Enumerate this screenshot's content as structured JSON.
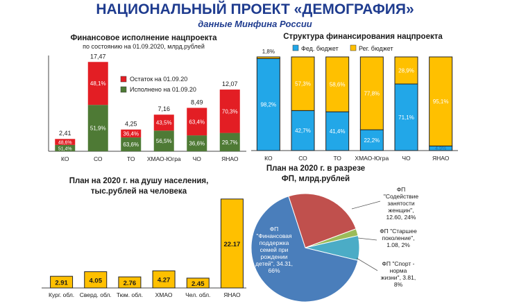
{
  "header": {
    "title": "НАЦИОНАЛЬНЫЙ ПРОЕКТ «ДЕМОГРАФИЯ»",
    "subtitle": "данные Минфина России"
  },
  "colors": {
    "title_blue": "#1f3c8f",
    "red": "#e31e24",
    "green": "#4e7a35",
    "fed_blue": "#22a7e8",
    "reg_yellow": "#ffc000",
    "pie_blue": "#4a7ebb",
    "pie_red": "#c0504d",
    "pie_green": "#9bbb59",
    "pie_teal": "#4bacc6"
  },
  "chart_data": [
    {
      "id": "execution",
      "type": "bar",
      "stacked": true,
      "title": "Финансовое исполнение нацпроекта",
      "subtitle": "по состоянию на 01.09.2020, млрд.рублей",
      "categories": [
        "КО",
        "СО",
        "ТО",
        "ХМАО-Югра",
        "ЧО",
        "ЯНАО"
      ],
      "totals": [
        "2,41",
        "17,47",
        "4,25",
        "7,16",
        "8,49",
        "12,07"
      ],
      "total_values": [
        2.41,
        17.47,
        4.25,
        7.16,
        8.49,
        12.07
      ],
      "series": [
        {
          "name": "Исполнено на 01.09.20",
          "color_key": "green",
          "labels": [
            "51,4%",
            "51,9%",
            "63,6%",
            "56,5%",
            "36,6%",
            "29,7%"
          ],
          "shares": [
            51.4,
            51.9,
            63.6,
            56.5,
            36.6,
            29.7
          ]
        },
        {
          "name": "Остаток на 01.09.20",
          "color_key": "red",
          "labels": [
            "48,6%",
            "48,1%",
            "36,4%",
            "43,5%",
            "63,4%",
            "70,3%"
          ],
          "shares": [
            48.6,
            48.1,
            36.4,
            43.5,
            63.4,
            70.3
          ]
        }
      ],
      "legend_order": [
        1,
        0
      ],
      "ylim": [
        0,
        19
      ]
    },
    {
      "id": "structure",
      "type": "bar",
      "stacked": true,
      "percent": true,
      "title": "Структура финансирования нацпроекта",
      "categories": [
        "КО",
        "СО",
        "ТО",
        "ХМАО-Югра",
        "ЧО",
        "ЯНАО"
      ],
      "series": [
        {
          "name": "Фед. бюджет",
          "color_key": "fed_blue",
          "labels": [
            "98,2%",
            "42,7%",
            "41,4%",
            "22,2%",
            "71,1%",
            "4,9%"
          ],
          "shares": [
            98.2,
            42.7,
            41.4,
            22.2,
            71.1,
            4.9
          ]
        },
        {
          "name": "Рег. бюджет",
          "color_key": "reg_yellow",
          "labels": [
            "1,8%",
            "57,3%",
            "58,6%",
            "77,8%",
            "28,9%",
            "95,1%"
          ],
          "shares": [
            1.8,
            57.3,
            58.6,
            77.8,
            28.9,
            95.1
          ]
        }
      ]
    },
    {
      "id": "per-capita",
      "type": "bar",
      "title": "План на 2020 г. на душу населения, тыс.рублей на человека",
      "title_lines": [
        "План на 2020 г. на душу населения,",
        "тыс.рублей на человека"
      ],
      "categories": [
        "Кург. обл.",
        "Сверд. обл.",
        "Тюм. обл.",
        "ХМАО",
        "Чел. обл.",
        "ЯНАО"
      ],
      "values": [
        2.91,
        4.05,
        2.76,
        4.27,
        2.45,
        22.17
      ],
      "value_labels": [
        "2.91",
        "4.05",
        "2.76",
        "4.27",
        "2.45",
        "22.17"
      ],
      "color_key": "reg_yellow",
      "ylim": [
        0,
        23
      ]
    },
    {
      "id": "fp-plan",
      "type": "pie",
      "title": "План на 2020 г. в разрезе ФП, млрд.рублей",
      "title_lines": [
        "План на 2020 г. в разрезе",
        "ФП, млрд.рублей"
      ],
      "slices": [
        {
          "name": "ФП \"Финансовая поддержка семей при рождении детей\"",
          "value": 34.31,
          "percent": 66,
          "color_key": "pie_blue",
          "label_lines": [
            "ФП",
            "\"Финансовая",
            "поддержка",
            "семей при",
            "рождении",
            "детей\", 34.31,",
            "66%"
          ]
        },
        {
          "name": "ФП \"Содействие занятости женщин\"",
          "value": 12.6,
          "percent": 24,
          "color_key": "pie_red",
          "label_lines": [
            "ФП",
            "\"Содействие",
            "занятости",
            "женщин\",",
            "12.60, 24%"
          ]
        },
        {
          "name": "ФП \"Старшее поколение\"",
          "value": 1.08,
          "percent": 2,
          "color_key": "pie_green",
          "label_lines": [
            "ФП \"Старшее",
            "поколение\",",
            "1.08, 2%"
          ]
        },
        {
          "name": "ФП \"Спорт - норма жизни\"",
          "value": 3.81,
          "percent": 8,
          "color_key": "pie_teal",
          "label_lines": [
            "ФП \"Спорт -",
            "норма",
            "жизни\", 3.81,",
            "8%"
          ]
        }
      ]
    }
  ]
}
